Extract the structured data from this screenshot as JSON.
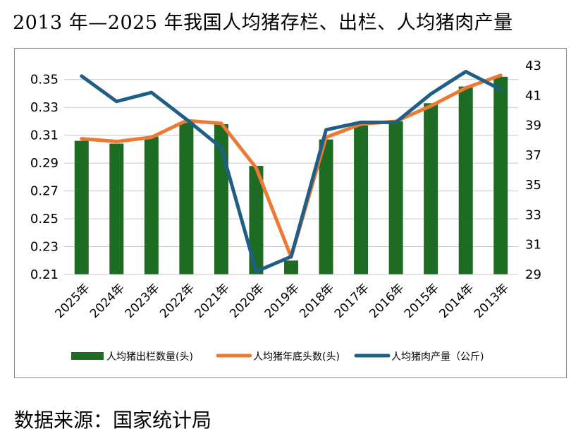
{
  "title": "2013 年—2025 年我国人均猪存栏、出栏、人均猪肉产量",
  "source": "数据来源：国家统计局",
  "colors": {
    "bar": "#1e6b24",
    "line_stock": "#ec7a34",
    "line_meat": "#1f5f86",
    "grid": "#c8c8c8"
  },
  "chart_data": {
    "type": "bar",
    "categories": [
      "2025年",
      "2024年",
      "2023年",
      "2022年",
      "2021年",
      "2020年",
      "2019年",
      "2018年",
      "2017年",
      "2016年",
      "2015年",
      "2014年",
      "2013年"
    ],
    "y_left": {
      "ylim": [
        0.21,
        0.36
      ],
      "ticks": [
        "0.21",
        "0.23",
        "0.25",
        "0.27",
        "0.29",
        "0.31",
        "0.33",
        "0.35"
      ]
    },
    "y_right": {
      "ylim": [
        29,
        43
      ],
      "ticks": [
        "29",
        "31",
        "33",
        "35",
        "37",
        "39",
        "41",
        "43"
      ]
    },
    "grid": true,
    "legend_position": "bottom",
    "series": [
      {
        "name": "人均猪出栏数量(头)",
        "type": "bar",
        "axis": "left",
        "values": [
          0.306,
          0.304,
          0.309,
          0.319,
          0.318,
          0.288,
          0.22,
          0.307,
          0.317,
          0.32,
          0.333,
          0.345,
          0.352
        ]
      },
      {
        "name": "人均猪年底头数(头)",
        "type": "line",
        "axis": "left",
        "values": [
          0.3075,
          0.3055,
          0.3085,
          0.3205,
          0.3185,
          0.2865,
          0.2225,
          0.3085,
          0.318,
          0.32,
          0.331,
          0.344,
          0.353
        ]
      },
      {
        "name": "人均猪肉产量（公斤)",
        "type": "line",
        "axis": "right",
        "values": [
          42.3,
          40.6,
          41.2,
          39.4,
          37.5,
          29.2,
          30.2,
          38.7,
          39.2,
          39.2,
          41.1,
          42.6,
          41.4
        ]
      }
    ]
  }
}
